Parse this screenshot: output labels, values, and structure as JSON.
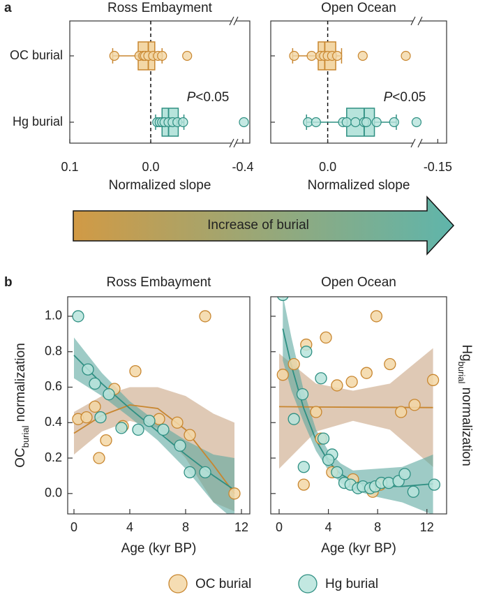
{
  "panel_labels": [
    "a",
    "b"
  ],
  "arrow_label": "Increase of burial",
  "chart_data": [
    {
      "type": "box",
      "title": "Ross Embayment",
      "xlabel": "Normalized slope",
      "categories": [
        "OC burial",
        "Hg burial"
      ],
      "xlim": [
        0.1,
        -0.42
      ],
      "xbreak": [
        -0.1,
        -0.38
      ],
      "reference_line": 0,
      "xticks": [
        0.1,
        {
          "value": 0,
          "label": "0.0"
        },
        -0.4
      ],
      "annotation": {
        "italic": "P",
        "text": "<0.05"
      },
      "series": [
        {
          "name": "OC burial",
          "color": "#c8862f",
          "fill": "#f3d7a6",
          "whiskers": [
            0.047,
            -0.014
          ],
          "box": [
            0.0155,
            -0.005
          ],
          "median": 0.003,
          "points": [
            0.045,
            0.014,
            0.009,
            0.007,
            0.003,
            -0.003,
            -0.009,
            -0.014,
            -0.045
          ]
        },
        {
          "name": "Hg burial",
          "color": "#2e8f82",
          "fill": "#b7e4dc",
          "whiskers": [
            -0.006,
            -0.041
          ],
          "box": [
            -0.014,
            -0.034
          ],
          "median": -0.022,
          "points": [
            -0.008,
            -0.011,
            -0.014,
            -0.017,
            -0.022,
            -0.027,
            -0.033,
            -0.04,
            -0.403
          ]
        }
      ]
    },
    {
      "type": "box",
      "title": "Open Ocean",
      "xlabel": "Normalized slope",
      "categories": [
        "OC burial",
        "Hg burial"
      ],
      "xlim": [
        0.078,
        -0.155
      ],
      "xbreak": [
        -0.117,
        -0.14
      ],
      "reference_line": 0,
      "xticks": [
        {
          "value": 0,
          "label": "0.0"
        },
        -0.15
      ],
      "annotation": {
        "italic": "P",
        "text": "<0.05"
      },
      "series": [
        {
          "name": "OC burial",
          "color": "#c8862f",
          "fill": "#f3d7a6",
          "whiskers": [
            0.048,
            -0.019
          ],
          "box": [
            0.013,
            -0.011
          ],
          "median": 0.004,
          "points": [
            0.046,
            0.022,
            0.01,
            0.005,
            0,
            -0.006,
            -0.013,
            -0.048,
            -0.107
          ]
        },
        {
          "name": "Hg burial",
          "color": "#2e8f82",
          "fill": "#b7e4dc",
          "whiskers": [
            0.029,
            -0.094
          ],
          "box": [
            -0.026,
            -0.064
          ],
          "median": -0.05,
          "points": [
            0.027,
            0.016,
            -0.021,
            -0.026,
            -0.038,
            -0.05,
            -0.053,
            -0.067,
            -0.091,
            -0.138
          ]
        }
      ]
    },
    {
      "type": "scatter",
      "title": "Ross Embayment",
      "xlabel": "Age (kyr BP)",
      "ylabel": {
        "main": "OC",
        "sub": "burial",
        "rest": " normalization"
      },
      "xlim": [
        -0.45,
        12.6
      ],
      "ylim": [
        -0.115,
        1.11
      ],
      "xticks": [
        0,
        4,
        8,
        12
      ],
      "ytick_labels": true,
      "yticks": [
        {
          "value": 0,
          "label": "0.0"
        },
        0.2,
        0.4,
        0.6,
        0.8,
        {
          "value": 1,
          "label": "1.0"
        }
      ],
      "series": [
        {
          "name": "OC burial",
          "color": "#c8862f",
          "fill": "#f3d7a6",
          "x": [
            0.3,
            0.9,
            1.5,
            1.8,
            2.3,
            2.9,
            3.5,
            4.4,
            6.1,
            7.4,
            8.3,
            9.4,
            11.5
          ],
          "y": [
            0.42,
            0.43,
            0.49,
            0.2,
            0.3,
            0.59,
            0.38,
            0.69,
            0.42,
            0.4,
            0.33,
            1.0,
            0.0
          ]
        },
        {
          "name": "Hg burial",
          "color": "#2e8f82",
          "fill": "#b7e4dc",
          "x": [
            0.3,
            1.0,
            1.5,
            1.9,
            2.5,
            3.4,
            4.6,
            5.4,
            6.4,
            7.6,
            8.3,
            9.4
          ],
          "y": [
            1.0,
            0.7,
            0.62,
            0.43,
            0.56,
            0.37,
            0.36,
            0.41,
            0.36,
            0.27,
            0.12,
            0.12
          ]
        }
      ],
      "fits": [
        {
          "color": "#c8862f",
          "band": "#c9a583",
          "x": [
            0,
            2,
            4,
            6,
            8,
            10,
            11.5
          ],
          "y": [
            0.34,
            0.44,
            0.5,
            0.48,
            0.36,
            0.16,
            0.0
          ],
          "upper": [
            0.46,
            0.55,
            0.6,
            0.6,
            0.55,
            0.45,
            0.4
          ],
          "lower": [
            0.22,
            0.35,
            0.41,
            0.37,
            0.2,
            -0.05,
            -0.1
          ]
        },
        {
          "color": "#2e8f82",
          "band": "#5ea8a0",
          "x": [
            0,
            2,
            4,
            6,
            8,
            10,
            11.5
          ],
          "y": [
            0.78,
            0.62,
            0.48,
            0.35,
            0.22,
            0.1,
            0.02
          ],
          "upper": [
            0.88,
            0.68,
            0.52,
            0.4,
            0.3,
            0.22,
            0.2
          ],
          "lower": [
            0.65,
            0.55,
            0.43,
            0.3,
            0.14,
            -0.05,
            -0.15
          ]
        }
      ]
    },
    {
      "type": "scatter",
      "title": "Open Ocean",
      "xlabel": "Age (kyr BP)",
      "y2label": {
        "main": "Hg",
        "sub": "burial",
        "rest": " normalization"
      },
      "xlim": [
        -0.68,
        13.6
      ],
      "ylim": [
        -0.115,
        1.11
      ],
      "xticks": [
        0,
        4,
        8,
        12
      ],
      "ytick_labels": false,
      "yticks": [
        0,
        0.2,
        0.4,
        0.6,
        0.8,
        1
      ],
      "series": [
        {
          "name": "OC burial",
          "color": "#c8862f",
          "fill": "#f3d7a6",
          "x": [
            0.3,
            1.2,
            2.2,
            3.8,
            2.0,
            3.0,
            4.7,
            5.9,
            7.1,
            7.9,
            9.0,
            9.9,
            11.0,
            12.5,
            4.3,
            6.0,
            7.6,
            8.2,
            3.4
          ],
          "y": [
            0.67,
            0.73,
            0.84,
            0.88,
            0.05,
            0.46,
            0.61,
            0.63,
            0.68,
            1.0,
            0.73,
            0.46,
            0.5,
            0.64,
            0.12,
            0.08,
            0.01,
            0.05,
            0.31
          ]
        },
        {
          "name": "Hg burial",
          "color": "#2e8f82",
          "fill": "#b7e4dc",
          "x": [
            0.3,
            2.2,
            1.2,
            1.9,
            3.4,
            3.6,
            4.3,
            4.0,
            2.0,
            4.7,
            5.3,
            5.8,
            6.4,
            6.8,
            7.4,
            7.8,
            8.3,
            8.9,
            9.7,
            10.2,
            10.9,
            12.6
          ],
          "y": [
            1.12,
            0.8,
            0.42,
            0.56,
            0.65,
            0.31,
            0.22,
            0.19,
            0.15,
            0.12,
            0.06,
            0.05,
            0.03,
            0.04,
            0.03,
            0.04,
            0.06,
            0.06,
            0.07,
            0.11,
            0.01,
            0.05
          ]
        }
      ],
      "fits": [
        {
          "color": "#c8862f",
          "band": "#c9a583",
          "x": [
            0,
            3,
            6,
            9,
            12.5
          ],
          "y": [
            0.49,
            0.488,
            0.487,
            0.486,
            0.485
          ],
          "upper": [
            0.79,
            0.62,
            0.58,
            0.62,
            0.82
          ],
          "lower": [
            0.14,
            0.35,
            0.41,
            0.36,
            0.15
          ]
        },
        {
          "color": "#2e8f82",
          "band": "#5ea8a0",
          "x": [
            0.3,
            1,
            2,
            3,
            4,
            5,
            6,
            8,
            10,
            12.5
          ],
          "y": [
            0.93,
            0.72,
            0.48,
            0.3,
            0.18,
            0.11,
            0.07,
            0.04,
            0.04,
            0.055
          ],
          "upper": [
            1.12,
            0.88,
            0.58,
            0.36,
            0.24,
            0.17,
            0.13,
            0.14,
            0.15,
            0.22
          ],
          "lower": [
            0.75,
            0.58,
            0.4,
            0.24,
            0.13,
            0.06,
            0.02,
            -0.02,
            -0.05,
            -0.12
          ]
        }
      ]
    }
  ]
}
